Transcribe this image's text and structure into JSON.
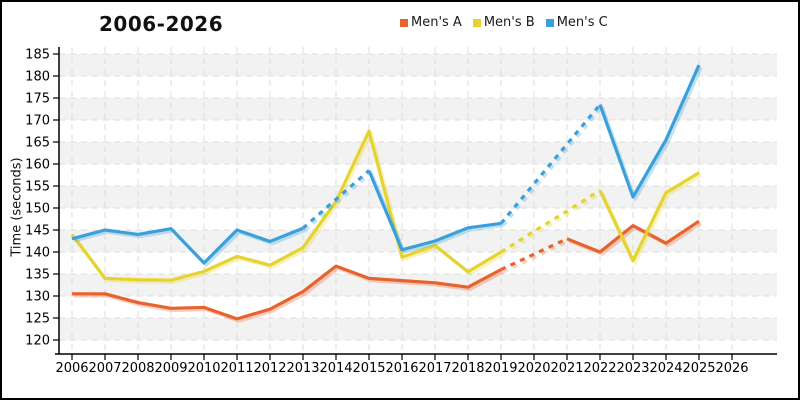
{
  "chart_data": {
    "type": "line",
    "title": "2006-2026",
    "ylabel": "Time (seconds)",
    "ylim": [
      120,
      185
    ],
    "grid": true,
    "legend_position": "top",
    "band_color": "#f2f2f2",
    "gridline_color": "#dcdcdc",
    "axis_color": "#000000",
    "x_ticks": [
      2006,
      2007,
      2008,
      2009,
      2010,
      2011,
      2012,
      2013,
      2014,
      2015,
      2016,
      2017,
      2018,
      2019,
      2020,
      2021,
      2022,
      2023,
      2024,
      2025,
      2026
    ],
    "y_ticks": [
      120,
      125,
      130,
      135,
      140,
      145,
      150,
      155,
      160,
      165,
      170,
      175,
      180,
      185
    ],
    "x": [
      2006,
      2007,
      2008,
      2009,
      2010,
      2011,
      2012,
      2013,
      2014,
      2015,
      2016,
      2017,
      2018,
      2019,
      2020,
      2021,
      2022,
      2023,
      2024,
      2025
    ],
    "series": [
      {
        "name": "Men's A",
        "color": "#E8622D",
        "values": [
          130.5,
          130.5,
          128.5,
          127.2,
          127.4,
          124.8,
          127,
          131,
          136.8,
          134,
          133.5,
          133,
          132,
          136,
          139.5,
          143,
          140,
          146,
          142,
          147
        ],
        "dashed_spans": [
          [
            2019,
            2021
          ]
        ]
      },
      {
        "name": "Men's B",
        "color": "#E5D32F",
        "values": [
          144,
          134,
          133.7,
          133.6,
          135.6,
          139,
          137,
          141,
          151.5,
          167.5,
          138.8,
          141.5,
          135.5,
          140,
          144.7,
          149.3,
          154,
          138,
          153.5,
          158
        ],
        "dashed_spans": [
          [
            2019,
            2022
          ]
        ]
      },
      {
        "name": "Men's C",
        "color": "#3AA0DB",
        "values": [
          143,
          145,
          144,
          145.3,
          137.5,
          145,
          142.4,
          145.4,
          152,
          158.5,
          140.5,
          142.5,
          145.5,
          146.5,
          155.5,
          164.5,
          173.5,
          152.5,
          165.5,
          182.5
        ],
        "dashed_spans": [
          [
            2013,
            2015
          ],
          [
            2019,
            2022
          ]
        ]
      }
    ]
  }
}
